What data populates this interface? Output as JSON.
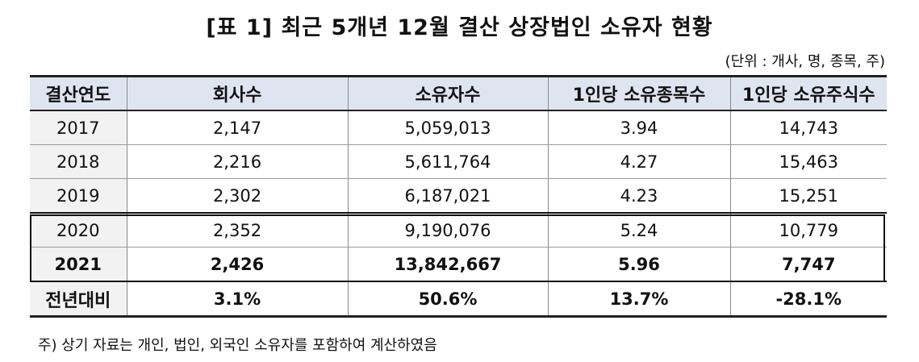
{
  "title": "[표 1] 최근 5개년 12월 결산 상장법인 소유자 현황",
  "unit_note": "(단위 : 개사, 명, 종목, 주)",
  "table": {
    "headers": [
      "결산연도",
      "회사수",
      "소유자수",
      "1인당 소유종목수",
      "1인당 소유주식수"
    ],
    "rows": [
      [
        "2017",
        "2,147",
        "5,059,013",
        "3.94",
        "14,743"
      ],
      [
        "2018",
        "2,216",
        "5,611,764",
        "4.27",
        "15,463"
      ],
      [
        "2019",
        "2,302",
        "6,187,021",
        "4.23",
        "15,251"
      ],
      [
        "2020",
        "2,352",
        "9,190,076",
        "5.24",
        "10,779"
      ],
      [
        "2021",
        "2,426",
        "13,842,667",
        "5.96",
        "7,747"
      ],
      [
        "전년대비",
        "3.1%",
        "50.6%",
        "13.7%",
        "-28.1%"
      ]
    ]
  },
  "footnote": "주) 상기 자료는 개인, 법인, 외국인 소유자를 포함하여 계산하였음"
}
